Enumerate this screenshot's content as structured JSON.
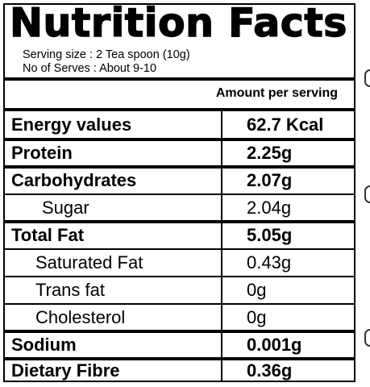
{
  "title": "Nutrition Facts",
  "serving_size": "Serving size : 2 Tea spoon (10g)",
  "serves": "No of Serves : About 9-10",
  "amount_header": "Amount per serving",
  "rows": [
    {
      "name": "Energy values",
      "value": "62.7 Kcal",
      "bold": true
    },
    {
      "name": "Protein",
      "value": "2.25g",
      "bold": true
    },
    {
      "name": "Carbohydrates",
      "value": "2.07g",
      "bold": true
    },
    {
      "name": "Sugar",
      "value": "2.04g",
      "bold": false
    },
    {
      "name": "Total Fat",
      "value": "5.05g",
      "bold": true
    },
    {
      "name": "Saturated Fat",
      "value": "0.43g",
      "bold": false
    },
    {
      "name": "Trans fat",
      "value": "0g",
      "bold": false
    },
    {
      "name": "Cholesterol",
      "value": "0g",
      "bold": false
    },
    {
      "name": "Sodium",
      "value": "0.001g",
      "bold": true
    },
    {
      "name": "Dietary Fibre",
      "value": "0.36g",
      "bold": true
    }
  ]
}
